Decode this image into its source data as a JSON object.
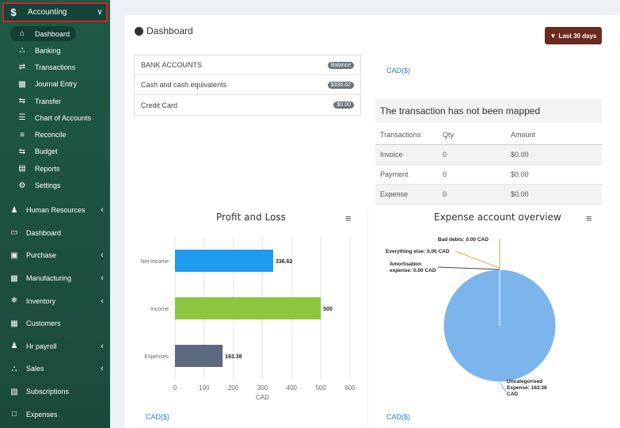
{
  "sidebar": {
    "accounting": {
      "label": "Accounting",
      "icon": "dollar-icon"
    },
    "sub_items": [
      {
        "label": "Dashboard",
        "icon": "home-icon",
        "active": true
      },
      {
        "label": "Banking",
        "icon": "bank-icon"
      },
      {
        "label": "Transactions",
        "icon": "exchange-icon"
      },
      {
        "label": "Journal Entry",
        "icon": "book-icon"
      },
      {
        "label": "Transfer",
        "icon": "transfer-icon"
      },
      {
        "label": "Chart of Accounts",
        "icon": "list-icon"
      },
      {
        "label": "Reconcile",
        "icon": "sliders-icon"
      },
      {
        "label": "Budget",
        "icon": "transfer-icon"
      },
      {
        "label": "Reports",
        "icon": "chart-icon"
      },
      {
        "label": "Settings",
        "icon": "gear-icon"
      }
    ],
    "main_items": [
      {
        "label": "Human Resources",
        "icon": "users-icon",
        "chevron": true
      },
      {
        "label": "Dashboard",
        "icon": "monitor-icon",
        "chevron": false
      },
      {
        "label": "Purchase",
        "icon": "cart-icon",
        "chevron": true
      },
      {
        "label": "Manufacturing",
        "icon": "industry-icon",
        "chevron": true
      },
      {
        "label": "Inventory",
        "icon": "snowflake-icon",
        "chevron": true
      },
      {
        "label": "Customers",
        "icon": "id-card-icon",
        "chevron": false
      },
      {
        "label": "Hr payroll",
        "icon": "users-icon",
        "chevron": true
      },
      {
        "label": "Sales",
        "icon": "bank-icon",
        "chevron": true
      },
      {
        "label": "Subscriptions",
        "icon": "money-icon",
        "chevron": false
      },
      {
        "label": "Expenses",
        "icon": "file-icon",
        "chevron": false
      }
    ]
  },
  "header": {
    "title": "Dashboard",
    "range_button": "Last 30 days"
  },
  "bank_accounts": {
    "header": "BANK ACCOUNTS",
    "header_badge": "Balance",
    "rows": [
      {
        "label": "Cash and cash equivalents",
        "value": "$336.62"
      },
      {
        "label": "Credit Card",
        "value": "$0.00"
      }
    ]
  },
  "currency_links": {
    "top_right": "CAD($)",
    "bottom_left": "CAD($)",
    "bottom_right": "CAD($)"
  },
  "transactions": {
    "notice": "The transaction has not been mapped",
    "columns": [
      "Transactions",
      "Qty",
      "Amount"
    ],
    "rows": [
      [
        "Invoice",
        "0",
        "$0.00"
      ],
      [
        "Payment",
        "0",
        "$0.00"
      ],
      [
        "Expense",
        "0",
        "$0.00"
      ]
    ]
  },
  "chart_data": [
    {
      "type": "bar",
      "orientation": "horizontal",
      "title": "Profit and Loss",
      "categories": [
        "Net Income",
        "Income",
        "Expenses"
      ],
      "values": [
        336.62,
        500,
        163.38
      ],
      "value_labels": [
        "336.62",
        "500",
        "163.38"
      ],
      "colors": [
        "#1f9bf0",
        "#8cc63f",
        "#5c6a7f"
      ],
      "xlabel": "CAD",
      "xlim": [
        0,
        600
      ],
      "xticks": [
        "0",
        "100",
        "200",
        "300",
        "400",
        "500",
        "600"
      ],
      "grid": true,
      "menu_icon": "hamburger-icon"
    },
    {
      "type": "pie",
      "title": "Expense account overview",
      "slices": [
        {
          "label": "Bad debts: 0.00 CAD",
          "value": 0
        },
        {
          "label": "Everything else: 0.00 CAD",
          "value": 0
        },
        {
          "label": "Amortisation expense: 0.00 CAD",
          "value": 0
        },
        {
          "label": "Uncategorised Expense: 163.38 CAD",
          "value": 163.38
        }
      ],
      "color": "#7cb5ec",
      "menu_icon": "hamburger-icon"
    }
  ]
}
